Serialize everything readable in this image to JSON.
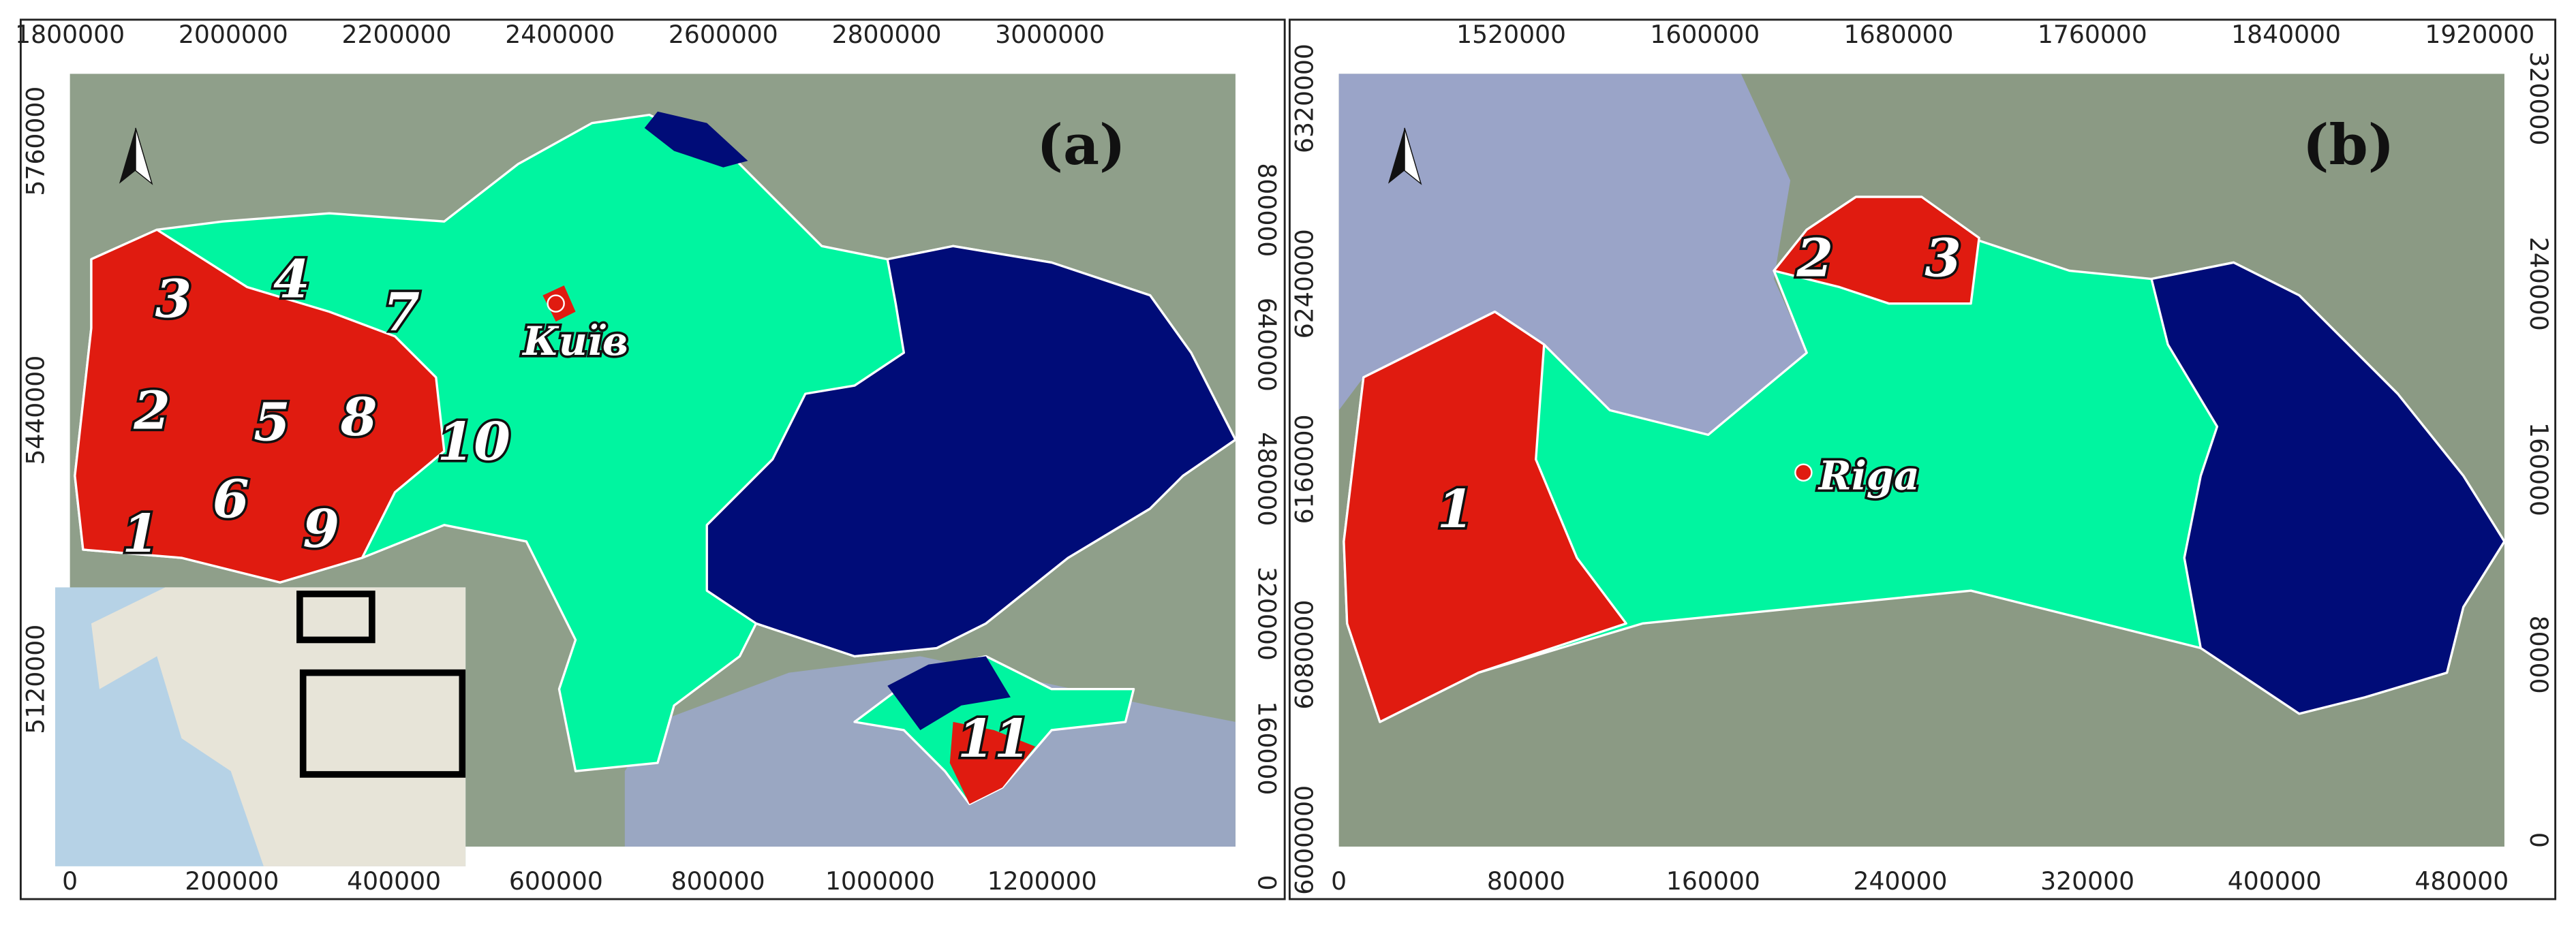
{
  "panels": [
    {
      "label": "(a)",
      "top_ticks": [
        1800000,
        2000000,
        2200000,
        2400000,
        2600000,
        2800000,
        3000000
      ],
      "bottom_ticks": [
        0,
        200000,
        400000,
        600000,
        800000,
        1000000,
        1200000
      ],
      "left_ticks": [
        5760000,
        5440000,
        5120000
      ],
      "right_ticks": [
        800000,
        640000,
        480000,
        320000,
        160000,
        0
      ],
      "regions": [
        1,
        2,
        3,
        4,
        5,
        6,
        7,
        8,
        9,
        10,
        11
      ],
      "city": "Київ"
    },
    {
      "label": "(b)",
      "top_ticks": [
        1520000,
        1600000,
        1680000,
        1760000,
        1840000,
        1920000
      ],
      "bottom_ticks": [
        0,
        80000,
        160000,
        240000,
        320000,
        400000,
        480000
      ],
      "left_ticks": [
        6320000,
        6240000,
        6160000,
        6080000,
        6000000
      ],
      "right_ticks": [
        320000,
        240000,
        160000,
        80000,
        0
      ],
      "regions": [
        1,
        2,
        3
      ],
      "city": "Riga"
    }
  ]
}
